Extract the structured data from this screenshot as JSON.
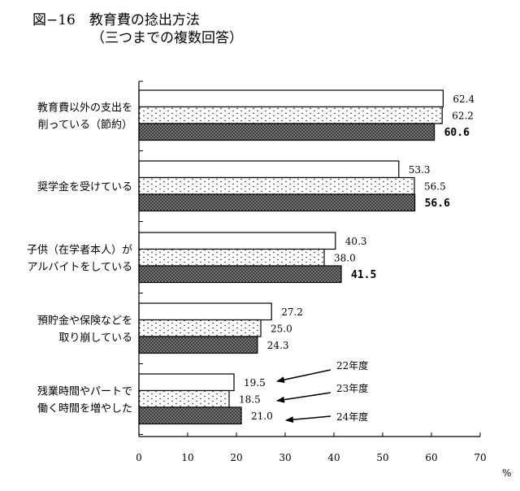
{
  "title": {
    "line1": "図−16　教育費の捻出方法",
    "line2": "（三つまでの複数回答）"
  },
  "unit_label": "%",
  "chart_data": {
    "type": "bar",
    "orientation": "horizontal",
    "categories": [
      [
        "教育費以外の支出を",
        "削っている（節約）"
      ],
      [
        "奨学金を受けている"
      ],
      [
        "子供（在学者本人）が",
        "アルバイトをしている"
      ],
      [
        "預貯金や保険などを",
        "取り崩している"
      ],
      [
        "残業時間やパートで",
        "働く時間を増やした"
      ]
    ],
    "series": [
      {
        "name": "22年度",
        "values": [
          62.4,
          53.3,
          40.3,
          27.2,
          19.5
        ],
        "value_labels": [
          "62.4",
          "53.3",
          "40.3",
          "27.2",
          "19.5"
        ],
        "fill": "white"
      },
      {
        "name": "23年度",
        "values": [
          62.2,
          56.5,
          38.0,
          25.0,
          18.5
        ],
        "value_labels": [
          "62.2",
          "56.5",
          "38.0",
          "25.0",
          "18.5"
        ],
        "fill": "dots"
      },
      {
        "name": "24年度",
        "values": [
          60.6,
          56.6,
          41.5,
          24.3,
          21.0
        ],
        "value_labels": [
          "60.6",
          "56.6",
          "41.5",
          "24.3",
          "21.0"
        ],
        "fill": "crosshatch"
      }
    ],
    "xlim": [
      0,
      70
    ],
    "xticks": [
      "0",
      "10",
      "20",
      "30",
      "40",
      "50",
      "60",
      "70"
    ],
    "grid": false,
    "legend": "annotated arrows next to the last category"
  }
}
